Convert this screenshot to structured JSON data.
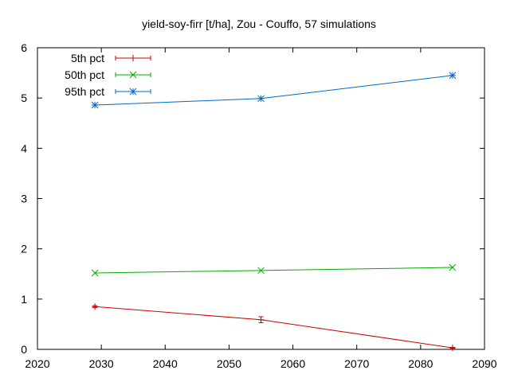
{
  "chart_data": {
    "type": "line",
    "title": "yield-soy-firr [t/ha], Zou - Couffo, 57 simulations",
    "xlabel": "",
    "ylabel": "",
    "xlim": [
      2020,
      2090
    ],
    "ylim": [
      0,
      6
    ],
    "xticks": [
      2020,
      2030,
      2040,
      2050,
      2060,
      2070,
      2080,
      2090
    ],
    "yticks": [
      0,
      1,
      2,
      3,
      4,
      5,
      6
    ],
    "grid": false,
    "legend_position": "top-left",
    "x": [
      2029,
      2055,
      2085
    ],
    "series": [
      {
        "name": "5th pct",
        "values": [
          0.85,
          0.59,
          0.03
        ],
        "error": [
          0.02,
          0.06,
          0.01
        ],
        "color": "#cc0000",
        "marker": "plus"
      },
      {
        "name": "50th pct",
        "values": [
          1.52,
          1.57,
          1.63
        ],
        "color": "#00aa00",
        "marker": "cross"
      },
      {
        "name": "95th pct",
        "values": [
          4.86,
          4.99,
          5.45
        ],
        "color": "#0066cc",
        "marker": "star"
      }
    ]
  }
}
